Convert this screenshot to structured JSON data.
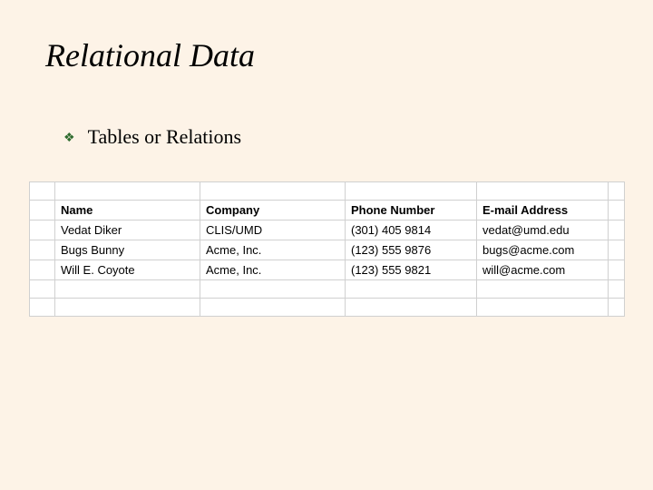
{
  "slide": {
    "title": "Relational Data",
    "bullet": {
      "text": "Tables or Relations",
      "marker_color": "#2e6b2e"
    },
    "background_color": "#fdf3e7"
  },
  "table": {
    "type": "table",
    "background_color": "#ffffff",
    "border_color": "#d0d0d0",
    "font_family": "Arial",
    "font_size": 13,
    "header_font_weight": "bold",
    "columns": [
      {
        "key": "name",
        "label": "Name",
        "width": 160
      },
      {
        "key": "company",
        "label": "Company",
        "width": 160
      },
      {
        "key": "phone",
        "label": "Phone Number",
        "width": 145
      },
      {
        "key": "email",
        "label": "E-mail Address",
        "width": 145
      }
    ],
    "rows": [
      {
        "name": "Vedat Diker",
        "company": "CLIS/UMD",
        "phone": "(301) 405 9814",
        "email": "vedat@umd.edu"
      },
      {
        "name": "Bugs Bunny",
        "company": "Acme, Inc.",
        "phone": "(123) 555 9876",
        "email": "bugs@acme.com"
      },
      {
        "name": "Will E. Coyote",
        "company": "Acme, Inc.",
        "phone": "(123) 555 9821",
        "email": "will@acme.com"
      }
    ],
    "blank_rows_before": 1,
    "blank_rows_after": 2
  }
}
